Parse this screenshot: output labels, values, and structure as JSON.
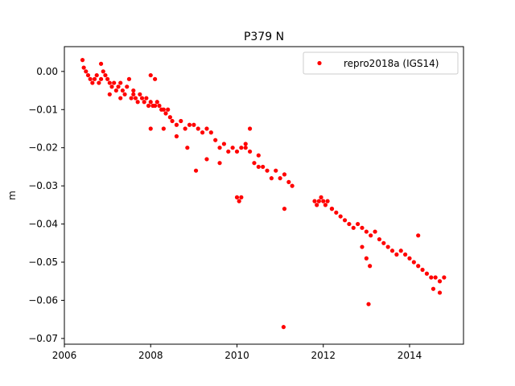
{
  "chart_data": {
    "type": "scatter",
    "title": "P379 N",
    "xlabel": "",
    "ylabel": "m",
    "xlim": [
      2006.0,
      2015.25
    ],
    "ylim": [
      -0.0715,
      0.0065
    ],
    "xticks": [
      2006,
      2008,
      2010,
      2012,
      2014
    ],
    "xtick_labels": [
      "2006",
      "2008",
      "2010",
      "2012",
      "2014"
    ],
    "yticks": [
      0.0,
      -0.01,
      -0.02,
      -0.03,
      -0.04,
      -0.05,
      -0.06,
      -0.07
    ],
    "ytick_labels": [
      "0.00",
      "−0.01",
      "−0.02",
      "−0.03",
      "−0.04",
      "−0.05",
      "−0.06",
      "−0.07"
    ],
    "grid": false,
    "legend_position": "top-right",
    "series": [
      {
        "name": "repro2018a (IGS14)",
        "color": "#ff0000",
        "marker": "circle",
        "x": [
          2006.42,
          2006.45,
          2006.5,
          2006.55,
          2006.6,
          2006.65,
          2006.7,
          2006.75,
          2006.8,
          2006.85,
          2006.9,
          2006.95,
          2007.0,
          2007.05,
          2007.1,
          2007.15,
          2007.2,
          2007.25,
          2007.3,
          2007.35,
          2007.4,
          2007.45,
          2007.5,
          2007.55,
          2007.6,
          2007.65,
          2007.7,
          2007.75,
          2007.8,
          2007.85,
          2007.9,
          2007.95,
          2008.0,
          2008.05,
          2008.1,
          2008.15,
          2008.2,
          2008.25,
          2008.3,
          2008.35,
          2008.4,
          2008.45,
          2008.5,
          2008.6,
          2008.7,
          2008.8,
          2008.9,
          2009.0,
          2009.1,
          2009.2,
          2009.3,
          2009.4,
          2009.5,
          2009.6,
          2009.7,
          2009.8,
          2009.9,
          2010.0,
          2010.1,
          2010.2,
          2010.3,
          2010.4,
          2010.5,
          2010.6,
          2010.7,
          2010.8,
          2010.9,
          2011.0,
          2011.1,
          2011.2,
          2011.28,
          2011.8,
          2011.85,
          2011.9,
          2011.95,
          2012.0,
          2012.05,
          2012.1,
          2012.2,
          2012.3,
          2012.4,
          2012.5,
          2012.6,
          2012.7,
          2012.8,
          2012.9,
          2013.0,
          2013.1,
          2013.2,
          2013.3,
          2013.4,
          2013.5,
          2013.6,
          2013.7,
          2013.8,
          2013.9,
          2014.0,
          2014.1,
          2014.2,
          2014.3,
          2014.4,
          2014.5,
          2014.6,
          2014.7,
          2014.8
        ],
        "y": [
          0.003,
          0.001,
          0.0,
          -0.001,
          -0.002,
          -0.003,
          -0.002,
          -0.001,
          -0.003,
          -0.002,
          0.0,
          -0.001,
          -0.002,
          -0.003,
          -0.004,
          -0.003,
          -0.005,
          -0.004,
          -0.003,
          -0.005,
          -0.006,
          -0.004,
          -0.002,
          -0.007,
          -0.006,
          -0.007,
          -0.008,
          -0.006,
          -0.007,
          -0.008,
          -0.007,
          -0.009,
          -0.008,
          -0.009,
          -0.009,
          -0.008,
          -0.009,
          -0.01,
          -0.01,
          -0.011,
          -0.01,
          -0.012,
          -0.013,
          -0.014,
          -0.013,
          -0.015,
          -0.014,
          -0.014,
          -0.015,
          -0.016,
          -0.015,
          -0.016,
          -0.018,
          -0.02,
          -0.019,
          -0.021,
          -0.02,
          -0.021,
          -0.02,
          -0.019,
          -0.021,
          -0.024,
          -0.022,
          -0.025,
          -0.026,
          -0.028,
          -0.026,
          -0.028,
          -0.027,
          -0.029,
          -0.03,
          -0.034,
          -0.035,
          -0.034,
          -0.033,
          -0.034,
          -0.035,
          -0.034,
          -0.036,
          -0.037,
          -0.038,
          -0.039,
          -0.04,
          -0.041,
          -0.04,
          -0.041,
          -0.042,
          -0.043,
          -0.042,
          -0.044,
          -0.045,
          -0.046,
          -0.047,
          -0.048,
          -0.047,
          -0.048,
          -0.049,
          -0.05,
          -0.051,
          -0.052,
          -0.053,
          -0.054,
          -0.054,
          -0.055,
          -0.054
        ]
      },
      {
        "name": "",
        "color": "#ff0000",
        "marker": "circle",
        "x": [
          2006.85,
          2007.05,
          2007.3,
          2007.6,
          2008.0,
          2008.1,
          2008.3,
          2008.6,
          2008.85,
          2009.05,
          2009.3,
          2009.6,
          2010.0,
          2010.05,
          2010.1,
          2010.3,
          2010.5,
          2011.08,
          2011.1,
          2012.2,
          2012.9,
          2013.0,
          2013.08,
          2013.05,
          2014.2,
          2014.55,
          2014.7,
          2008.0,
          2010.2
        ],
        "y": [
          0.002,
          -0.006,
          -0.007,
          -0.005,
          -0.015,
          -0.002,
          -0.015,
          -0.017,
          -0.02,
          -0.026,
          -0.023,
          -0.024,
          -0.033,
          -0.034,
          -0.033,
          -0.015,
          -0.025,
          -0.067,
          -0.036,
          -0.036,
          -0.046,
          -0.049,
          -0.051,
          -0.061,
          -0.043,
          -0.057,
          -0.058,
          -0.001,
          -0.02
        ]
      }
    ]
  }
}
